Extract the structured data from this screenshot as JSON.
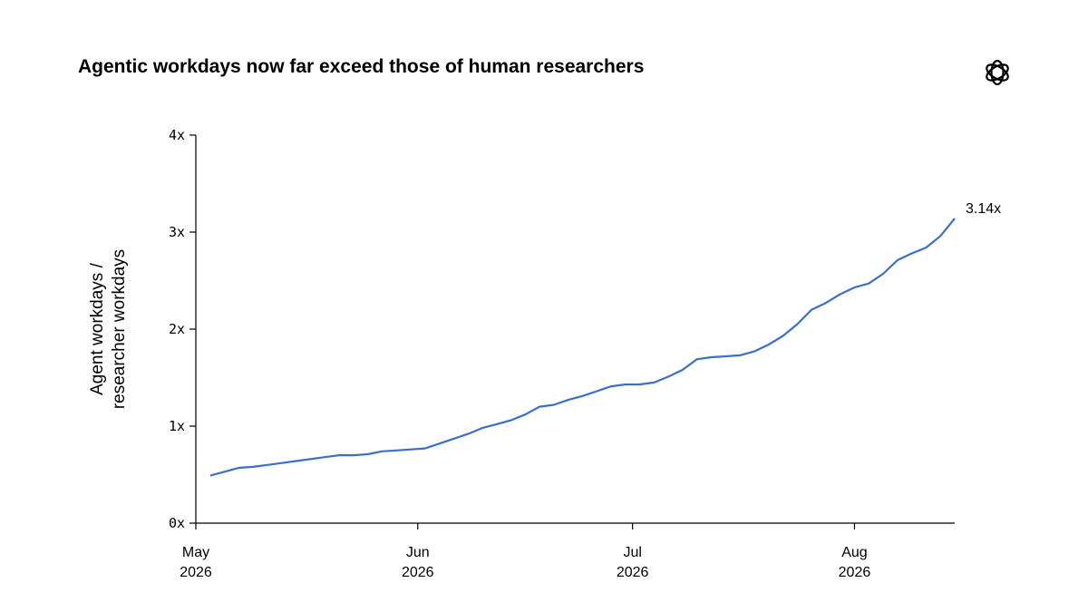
{
  "chart_data": {
    "type": "line",
    "title": "Agentic workdays now far exceed those of human researchers",
    "ylabel_lines": [
      "Agent workdays /",
      "researcher workdays"
    ],
    "xlabel": "",
    "ylim": [
      0,
      4
    ],
    "y_ticks": [
      {
        "value": 0,
        "label": "0x"
      },
      {
        "value": 1,
        "label": "1x"
      },
      {
        "value": 2,
        "label": "2x"
      },
      {
        "value": 3,
        "label": "3x"
      },
      {
        "value": 4,
        "label": "4x"
      }
    ],
    "x_range": [
      "2026-05-01",
      "2026-08-15"
    ],
    "x_ticks": [
      {
        "date": "2026-05-01",
        "month": "May",
        "year": "2026"
      },
      {
        "date": "2026-06-01",
        "month": "Jun",
        "year": "2026"
      },
      {
        "date": "2026-07-01",
        "month": "Jul",
        "year": "2026"
      },
      {
        "date": "2026-08-01",
        "month": "Aug",
        "year": "2026"
      }
    ],
    "line_color": "#3b6fc9",
    "end_label": "3.14x",
    "grid": false,
    "series": [
      {
        "x": [
          "2026-05-03",
          "2026-05-05",
          "2026-05-07",
          "2026-05-09",
          "2026-05-11",
          "2026-05-13",
          "2026-05-15",
          "2026-05-17",
          "2026-05-19",
          "2026-05-21",
          "2026-05-23",
          "2026-05-25",
          "2026-05-27",
          "2026-05-29",
          "2026-05-31",
          "2026-06-02",
          "2026-06-04",
          "2026-06-06",
          "2026-06-08",
          "2026-06-10",
          "2026-06-12",
          "2026-06-14",
          "2026-06-16",
          "2026-06-18",
          "2026-06-20",
          "2026-06-22",
          "2026-06-24",
          "2026-06-26",
          "2026-06-28",
          "2026-06-30",
          "2026-07-02",
          "2026-07-04",
          "2026-07-06",
          "2026-07-08",
          "2026-07-10",
          "2026-07-12",
          "2026-07-14",
          "2026-07-16",
          "2026-07-18",
          "2026-07-20",
          "2026-07-22",
          "2026-07-24",
          "2026-07-26",
          "2026-07-28",
          "2026-07-30",
          "2026-08-01",
          "2026-08-03",
          "2026-08-05",
          "2026-08-07",
          "2026-08-09",
          "2026-08-11",
          "2026-08-13",
          "2026-08-15"
        ],
        "y": [
          0.49,
          0.53,
          0.57,
          0.58,
          0.6,
          0.62,
          0.64,
          0.66,
          0.68,
          0.7,
          0.7,
          0.71,
          0.74,
          0.75,
          0.76,
          0.77,
          0.82,
          0.87,
          0.92,
          0.98,
          1.02,
          1.06,
          1.12,
          1.2,
          1.22,
          1.27,
          1.31,
          1.36,
          1.41,
          1.43,
          1.43,
          1.45,
          1.51,
          1.58,
          1.69,
          1.71,
          1.72,
          1.73,
          1.77,
          1.84,
          1.93,
          2.05,
          2.2,
          2.27,
          2.36,
          2.43,
          2.47,
          2.57,
          2.71,
          2.78,
          2.84,
          2.96,
          3.14
        ]
      }
    ]
  }
}
